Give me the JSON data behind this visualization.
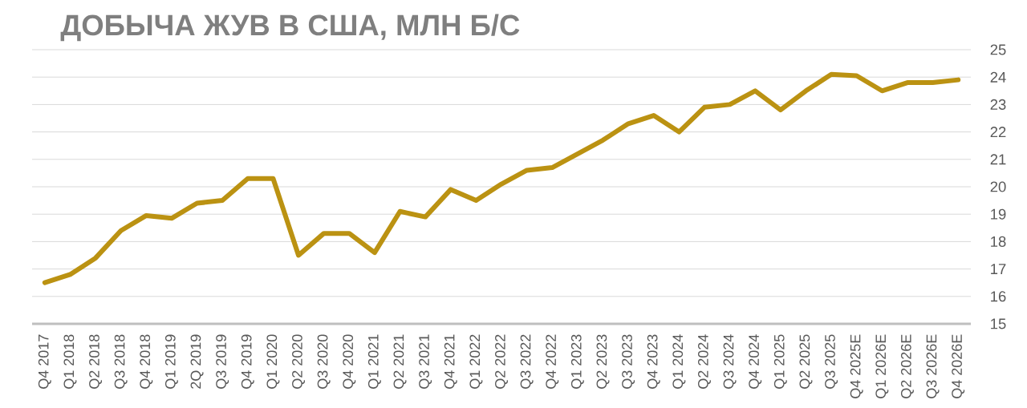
{
  "chart_data": {
    "type": "line",
    "title": "ДОБЫЧА ЖУВ В США, МЛН Б/С",
    "categories": [
      "Q4 2017",
      "Q1 2018",
      "Q2 2018",
      "Q3 2018",
      "Q4 2018",
      "Q1 2019",
      "2Q 2019",
      "Q3 2019",
      "Q4 2019",
      "Q1 2020",
      "Q2 2020",
      "Q3 2020",
      "Q4 2020",
      "Q1 2021",
      "Q2 2021",
      "Q3 2021",
      "Q4 2021",
      "Q1 2022",
      "Q2 2022",
      "Q3 2022",
      "Q4 2022",
      "Q1 2023",
      "Q2 2023",
      "Q3 2023",
      "Q4 2023",
      "Q1 2024",
      "Q2 2024",
      "Q3 2024",
      "Q4 2024",
      "Q1 2025",
      "Q2 2025",
      "Q3 2025",
      "Q4 2025E",
      "Q1 2026E",
      "Q2 2026E",
      "Q3 2026E",
      "Q4 2026E"
    ],
    "values": [
      16.5,
      16.8,
      17.4,
      18.4,
      18.95,
      18.85,
      19.4,
      19.5,
      20.3,
      20.3,
      17.5,
      18.3,
      18.3,
      17.6,
      19.1,
      18.9,
      19.9,
      19.5,
      20.1,
      20.6,
      20.7,
      21.2,
      21.7,
      22.3,
      22.6,
      22.0,
      22.9,
      23.0,
      23.5,
      22.8,
      23.5,
      24.1,
      24.05,
      23.5,
      23.8,
      23.8,
      23.9
    ],
    "color": "#bb9212",
    "ylim": [
      15,
      25
    ],
    "yticks": [
      15,
      16,
      17,
      18,
      19,
      20,
      21,
      22,
      23,
      24,
      25
    ],
    "grid": "y",
    "marker": "none",
    "line_style": "solid"
  }
}
